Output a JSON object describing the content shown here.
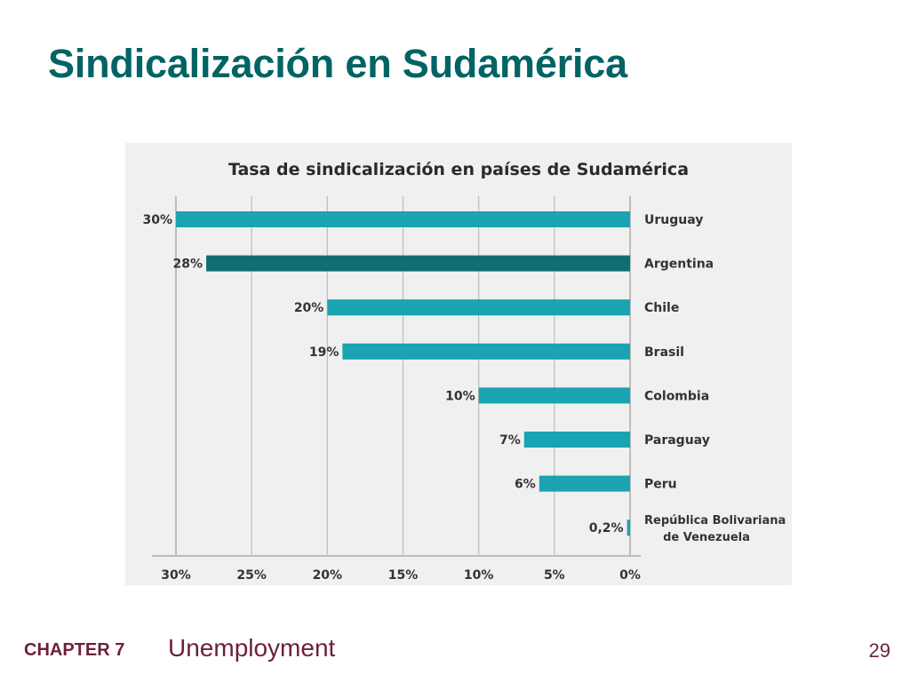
{
  "slide": {
    "title": "Sindicalización en Sudamérica"
  },
  "footer": {
    "chapter": "CHAPTER 7",
    "topic": "Unemployment",
    "page": "29"
  },
  "colors": {
    "title": "#006464",
    "footer": "#6d1f3f",
    "bar": "#1aa3b0",
    "bar_highlight": "#0f6e72",
    "panel_background": "#f0f0f0",
    "grid": "#bdbdbd",
    "text": "#333333"
  },
  "chart_data": {
    "type": "bar",
    "orientation": "horizontal",
    "x_direction": "reversed",
    "title": "Tasa de sindicalización en países de Sudamérica",
    "xlabel": "",
    "ylabel": "",
    "xlim": [
      0,
      30
    ],
    "x_ticks": [
      "30%",
      "25%",
      "20%",
      "15%",
      "10%",
      "5%",
      "0%"
    ],
    "x_tick_values": [
      30,
      25,
      20,
      15,
      10,
      5,
      0
    ],
    "grid": true,
    "legend": "none",
    "categories": [
      "Uruguay",
      "Argentina",
      "Chile",
      "Brasil",
      "Colombia",
      "Paraguay",
      "Peru",
      "República Bolivariana de Venezuela"
    ],
    "category_lines": [
      [
        "Uruguay"
      ],
      [
        "Argentina"
      ],
      [
        "Chile"
      ],
      [
        "Brasil"
      ],
      [
        "Colombia"
      ],
      [
        "Paraguay"
      ],
      [
        "Peru"
      ],
      [
        "República Bolivariana",
        "de Venezuela"
      ]
    ],
    "values": [
      30,
      28,
      20,
      19,
      10,
      7,
      6,
      0.2
    ],
    "value_labels": [
      "30%",
      "28%",
      "20%",
      "19%",
      "10%",
      "7%",
      "6%",
      "0,2%"
    ],
    "highlighted_category": "Argentina"
  }
}
